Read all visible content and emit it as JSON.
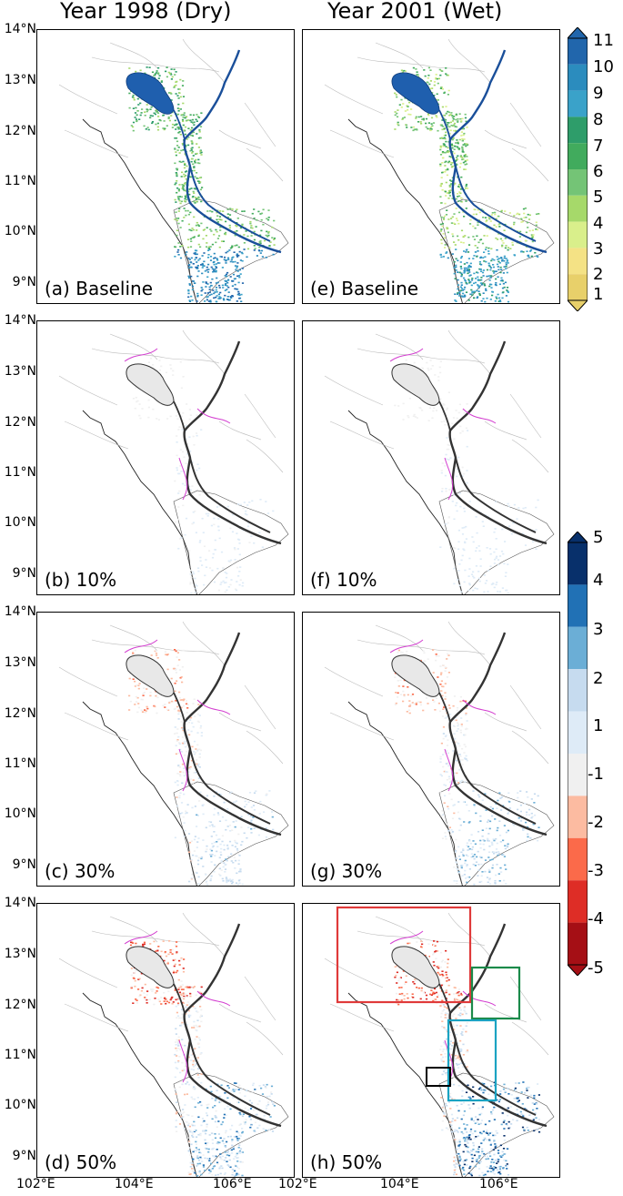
{
  "columns": [
    {
      "title": "Year 1998 (Dry)"
    },
    {
      "title": "Year 2001 (Wet)"
    }
  ],
  "panels": [
    {
      "label": "(a) Baseline",
      "type": "baseline",
      "year": "1998"
    },
    {
      "label": "(b) 10%",
      "type": "diff",
      "year": "1998",
      "level": 10
    },
    {
      "label": "(c) 30%",
      "type": "diff",
      "year": "1998",
      "level": 30
    },
    {
      "label": "(d) 50%",
      "type": "diff",
      "year": "1998",
      "level": 50
    },
    {
      "label": "(e) Baseline",
      "type": "baseline",
      "year": "2001"
    },
    {
      "label": "(f) 10%",
      "type": "diff",
      "year": "2001",
      "level": 10
    },
    {
      "label": "(g) 30%",
      "type": "diff",
      "year": "2001",
      "level": 30
    },
    {
      "label": "(h) 50%",
      "type": "diff",
      "year": "2001",
      "level": 50
    }
  ],
  "lat_labels": [
    "14°N",
    "13°N",
    "12°N",
    "11°N",
    "10°N",
    "9°N"
  ],
  "lon_labels": [
    "102°E",
    "104°E",
    "106°E",
    "102°E",
    "104°E",
    "106°E"
  ],
  "colorbar_baseline": {
    "ticks": [
      "11",
      "10",
      "9",
      "8",
      "7",
      "6",
      "5",
      "4",
      "3",
      "2",
      "1"
    ],
    "colors": [
      "#2166ac",
      "#2b8cbe",
      "#3aa2c9",
      "#2e9d6a",
      "#41ab5d",
      "#74c476",
      "#a6d96a",
      "#d9ef8b",
      "#f4e285",
      "#e8d06a"
    ]
  },
  "colorbar_diff": {
    "ticks": [
      "5",
      "4",
      "3",
      "2",
      "1",
      "-1",
      "-2",
      "-3",
      "-4",
      "-5"
    ],
    "colors": [
      "#08306b",
      "#2171b5",
      "#6baed6",
      "#c6dbef",
      "#deebf7",
      "#f0f0f0",
      "#fcbba1",
      "#fb6a4a",
      "#de2d26",
      "#a50f15"
    ]
  },
  "region_boxes": [
    {
      "color": "#e03a3a"
    },
    {
      "color": "#1b8a4a"
    },
    {
      "color": "#1ba3c2"
    },
    {
      "color": "#000000"
    }
  ]
}
